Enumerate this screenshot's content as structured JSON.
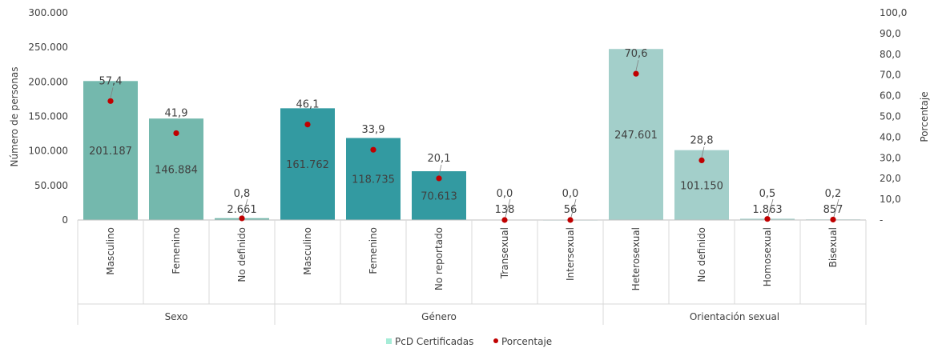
{
  "chart_data": {
    "type": "bar",
    "ylabel": "Número de personas",
    "y2label": "Porcentaje",
    "ylim": [
      0,
      300000
    ],
    "y2lim": [
      0,
      100
    ],
    "yticks": [
      "0",
      "50.000",
      "100.000",
      "150.000",
      "200.000",
      "250.000",
      "300.000"
    ],
    "y2ticks": [
      "-",
      "10,0",
      "20,0",
      "30,0",
      "40,0",
      "50,0",
      "60,0",
      "70,0",
      "80,0",
      "90,0",
      "100,0"
    ],
    "groups": [
      {
        "name": "Sexo",
        "color": "#74b8ad",
        "items": [
          {
            "category": "Masculino",
            "value": 201187,
            "value_label": "201.187",
            "pct": 57.4,
            "pct_label": "57,4"
          },
          {
            "category": "Femenino",
            "value": 146884,
            "value_label": "146.884",
            "pct": 41.9,
            "pct_label": "41,9"
          },
          {
            "category": "No definido",
            "value": 2661,
            "value_label": "2.661",
            "pct": 0.8,
            "pct_label": "0,8"
          }
        ]
      },
      {
        "name": "Género",
        "color": "#339aa1",
        "items": [
          {
            "category": "Masculino",
            "value": 161762,
            "value_label": "161.762",
            "pct": 46.1,
            "pct_label": "46,1"
          },
          {
            "category": "Femenino",
            "value": 118735,
            "value_label": "118.735",
            "pct": 33.9,
            "pct_label": "33,9"
          },
          {
            "category": "No reportado",
            "value": 70613,
            "value_label": "70.613",
            "pct": 20.1,
            "pct_label": "20,1"
          },
          {
            "category": "Transexual",
            "value": 138,
            "value_label": "138",
            "pct": 0.0,
            "pct_label": "0,0"
          },
          {
            "category": "Intersexual",
            "value": 56,
            "value_label": "56",
            "pct": 0.0,
            "pct_label": "0,0"
          }
        ]
      },
      {
        "name": "Orientación sexual",
        "color": "#a3cfca",
        "items": [
          {
            "category": "Heterosexual",
            "value": 247601,
            "value_label": "247.601",
            "pct": 70.6,
            "pct_label": "70,6"
          },
          {
            "category": "No definido",
            "value": 101150,
            "value_label": "101.150",
            "pct": 28.8,
            "pct_label": "28,8"
          },
          {
            "category": "Homosexual",
            "value": 1863,
            "value_label": "1.863",
            "pct": 0.5,
            "pct_label": "0,5"
          },
          {
            "category": "Bisexual",
            "value": 857,
            "value_label": "857",
            "pct": 0.2,
            "pct_label": "0,2"
          }
        ]
      }
    ],
    "legend": {
      "position": "bottom",
      "items": [
        {
          "name": "PcD Certificadas",
          "marker": "square",
          "color": "#a6ecd7"
        },
        {
          "name": "Porcentaje",
          "marker": "circle",
          "color": "#c00000"
        }
      ]
    },
    "dot_color": "#c00000",
    "grid": false
  }
}
